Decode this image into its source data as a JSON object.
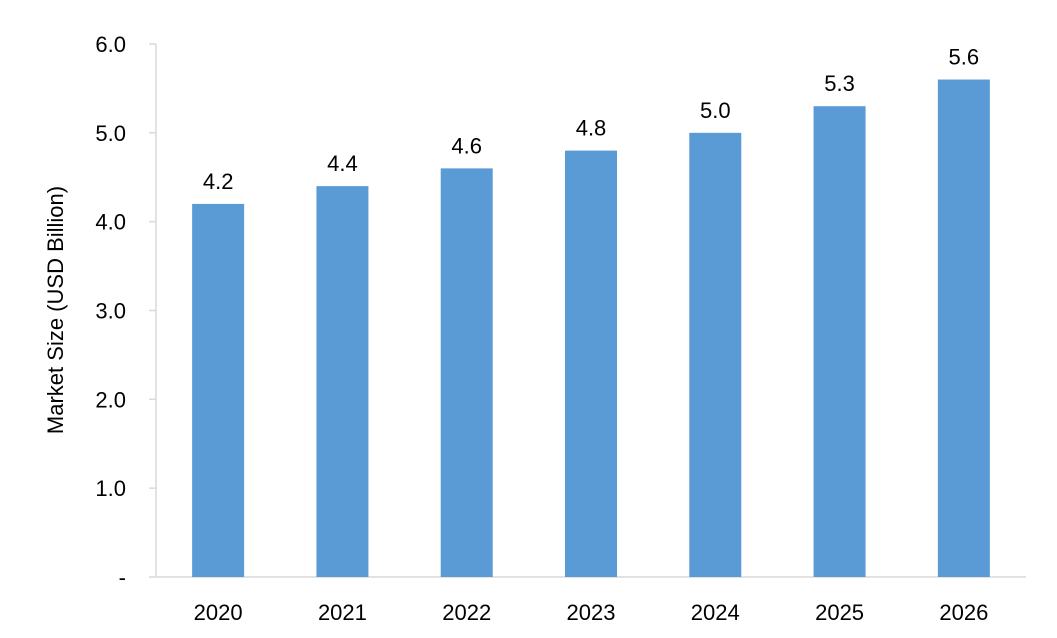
{
  "chart_data": {
    "type": "bar",
    "title": "",
    "xlabel": "",
    "ylabel": "Market Size (USD Billion)",
    "categories": [
      "2020",
      "2021",
      "2022",
      "2023",
      "2024",
      "2025",
      "2026"
    ],
    "values": [
      4.2,
      4.4,
      4.6,
      4.8,
      5.0,
      5.3,
      5.6
    ],
    "data_labels": [
      "4.2",
      "4.4",
      "4.6",
      "4.8",
      "5.0",
      "5.3",
      "5.6"
    ],
    "ylim": [
      0,
      6
    ],
    "yticks": [
      0,
      1,
      2,
      3,
      4,
      5,
      6
    ],
    "ytick_labels": [
      "-",
      "1.0",
      "2.0",
      "3.0",
      "4.0",
      "5.0",
      "6.0"
    ],
    "grid": false,
    "legend": "none",
    "bar_color": "#5B9BD5",
    "axis_color": "#D9D9D9"
  }
}
